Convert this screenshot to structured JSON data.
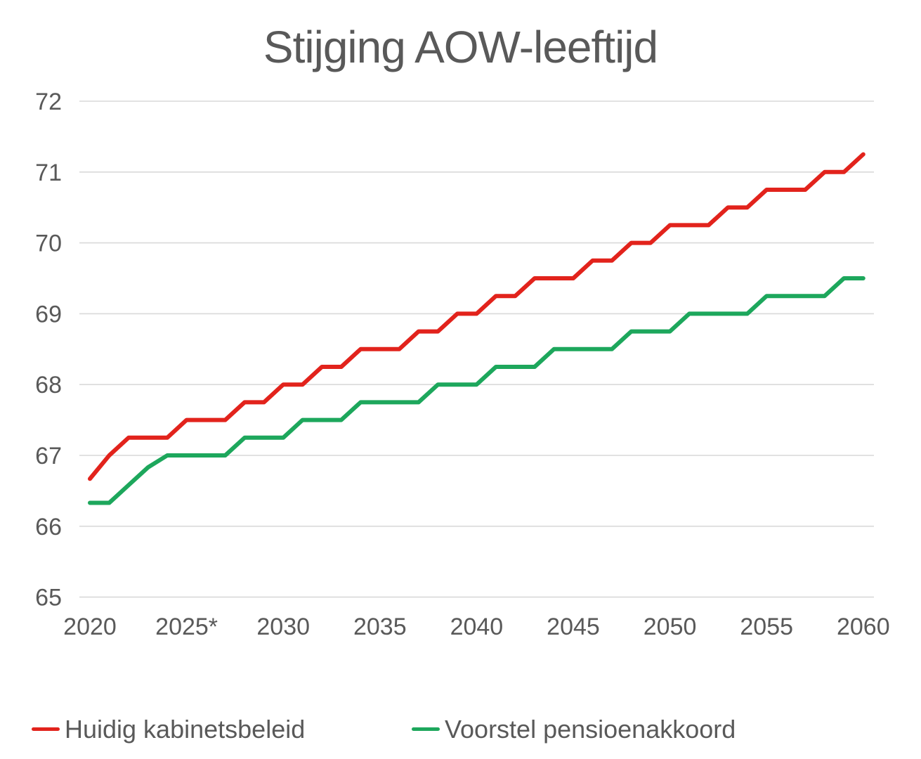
{
  "title": "Stijging AOW-leeftijd",
  "chart_data": {
    "type": "line",
    "title": "Stijging AOW-leeftijd",
    "xlabel": "",
    "ylabel": "",
    "xlim": [
      2020,
      2060
    ],
    "ylim": [
      65,
      72
    ],
    "grid": "horizontal",
    "legend_position": "bottom-left",
    "x": [
      2020,
      2021,
      2022,
      2023,
      2024,
      2025,
      2026,
      2027,
      2028,
      2029,
      2030,
      2031,
      2032,
      2033,
      2034,
      2035,
      2036,
      2037,
      2038,
      2039,
      2040,
      2041,
      2042,
      2043,
      2044,
      2045,
      2046,
      2047,
      2048,
      2049,
      2050,
      2051,
      2052,
      2053,
      2054,
      2055,
      2056,
      2057,
      2058,
      2059,
      2060
    ],
    "xticks": [
      "2020",
      "2025*",
      "2030",
      "2035",
      "2040",
      "2045",
      "2050",
      "2055",
      "2060"
    ],
    "yticks": [
      72,
      71,
      70,
      69,
      68,
      67,
      66,
      65
    ],
    "series": [
      {
        "name": "Huidig kabinetsbeleid",
        "color": "#e2231c",
        "values": [
          66.67,
          67,
          67.25,
          67.25,
          67.25,
          67.5,
          67.5,
          67.5,
          67.75,
          67.75,
          68,
          68,
          68.25,
          68.25,
          68.5,
          68.5,
          68.5,
          68.75,
          68.75,
          69,
          69,
          69.25,
          69.25,
          69.5,
          69.5,
          69.5,
          69.75,
          69.75,
          70,
          70,
          70.25,
          70.25,
          70.25,
          70.5,
          70.5,
          70.75,
          70.75,
          70.75,
          71,
          71,
          71.25
        ]
      },
      {
        "name": "Voorstel pensioenakkoord",
        "color": "#1da75c",
        "values": [
          66.33,
          66.33,
          66.58,
          66.83,
          67,
          67,
          67,
          67,
          67.25,
          67.25,
          67.25,
          67.5,
          67.5,
          67.5,
          67.75,
          67.75,
          67.75,
          67.75,
          68,
          68,
          68,
          68.25,
          68.25,
          68.25,
          68.5,
          68.5,
          68.5,
          68.5,
          68.75,
          68.75,
          68.75,
          69,
          69,
          69,
          69,
          69.25,
          69.25,
          69.25,
          69.25,
          69.5,
          69.5
        ]
      }
    ],
    "colors": {
      "text_gray": "#595959",
      "gridline_gray": "#d9d9d9"
    }
  }
}
